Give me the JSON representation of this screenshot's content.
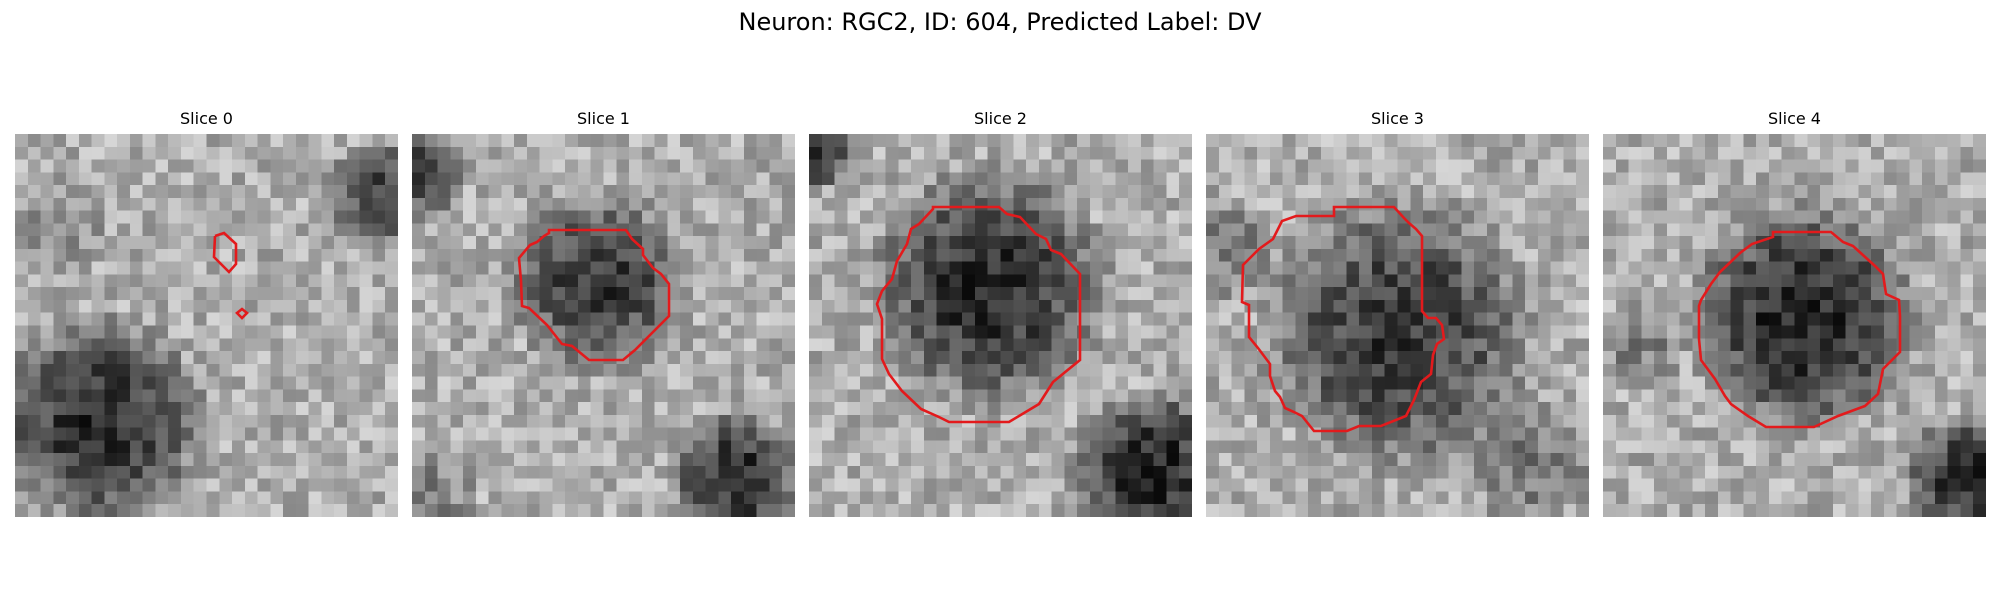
{
  "figure": {
    "title": "Neuron: RGC2, ID: 604, Predicted Label: DV",
    "contour_color": "#e31a1c",
    "panels": [
      {
        "title": "Slice 0"
      },
      {
        "title": "Slice 1"
      },
      {
        "title": "Slice 2"
      },
      {
        "title": "Slice 3"
      },
      {
        "title": "Slice 4"
      }
    ]
  }
}
